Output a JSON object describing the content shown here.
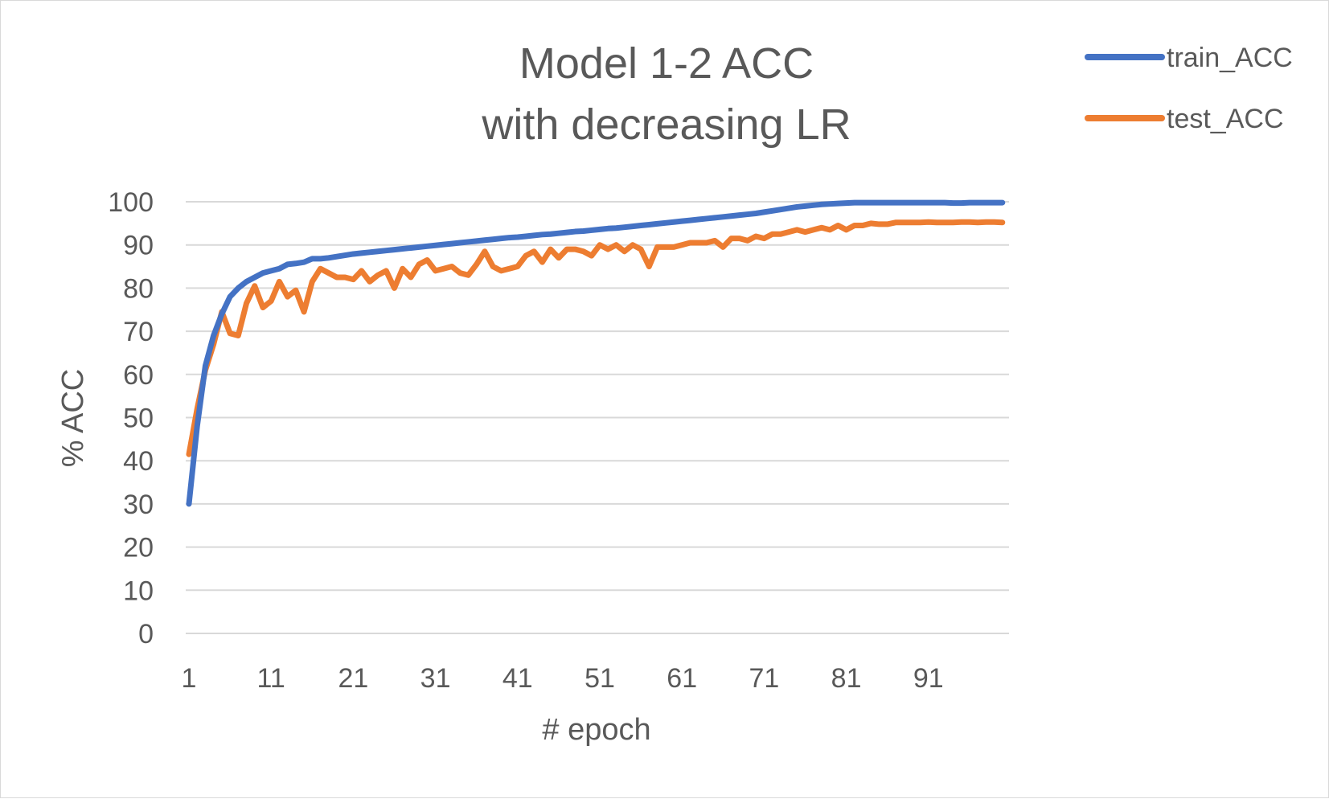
{
  "chart_data": {
    "type": "line",
    "title": "Model 1-2 ACC",
    "subtitle": "with decreasing LR",
    "xlabel": "# epoch",
    "ylabel": "% ACC",
    "ylim": [
      0,
      100
    ],
    "y_ticks": [
      "0",
      "10",
      "20",
      "30",
      "40",
      "50",
      "60",
      "70",
      "80",
      "90",
      "100"
    ],
    "x_ticks": [
      "1",
      "11",
      "21",
      "31",
      "41",
      "51",
      "61",
      "71",
      "81",
      "91"
    ],
    "x": [
      1,
      2,
      3,
      4,
      5,
      6,
      7,
      8,
      9,
      10,
      11,
      12,
      13,
      14,
      15,
      16,
      17,
      18,
      19,
      20,
      21,
      22,
      23,
      24,
      25,
      26,
      27,
      28,
      29,
      30,
      31,
      32,
      33,
      34,
      35,
      36,
      37,
      38,
      39,
      40,
      41,
      42,
      43,
      44,
      45,
      46,
      47,
      48,
      49,
      50,
      51,
      52,
      53,
      54,
      55,
      56,
      57,
      58,
      59,
      60,
      61,
      62,
      63,
      64,
      65,
      66,
      67,
      68,
      69,
      70,
      71,
      72,
      73,
      74,
      75,
      76,
      77,
      78,
      79,
      80,
      81,
      82,
      83,
      84,
      85,
      86,
      87,
      88,
      89,
      90,
      91,
      92,
      93,
      94,
      95,
      96,
      97,
      98,
      99,
      100
    ],
    "grid": true,
    "legend_position": "top-right",
    "series": [
      {
        "name": "train_ACC",
        "color": "#4472c4",
        "values": [
          30,
          48,
          62,
          69,
          74,
          78,
          80,
          81.5,
          82.5,
          83.5,
          84,
          84.5,
          85.5,
          85.7,
          86,
          86.8,
          86.8,
          87,
          87.3,
          87.6,
          87.9,
          88.1,
          88.3,
          88.5,
          88.7,
          88.9,
          89.1,
          89.3,
          89.5,
          89.7,
          89.9,
          90.1,
          90.3,
          90.5,
          90.7,
          90.9,
          91.1,
          91.3,
          91.5,
          91.7,
          91.8,
          92,
          92.2,
          92.4,
          92.5,
          92.7,
          92.9,
          93.1,
          93.2,
          93.4,
          93.6,
          93.8,
          93.9,
          94.1,
          94.3,
          94.5,
          94.7,
          94.9,
          95.1,
          95.3,
          95.5,
          95.7,
          95.9,
          96.1,
          96.3,
          96.5,
          96.7,
          96.9,
          97.1,
          97.3,
          97.6,
          97.9,
          98.2,
          98.5,
          98.8,
          99,
          99.2,
          99.4,
          99.5,
          99.6,
          99.7,
          99.8,
          99.8,
          99.8,
          99.8,
          99.8,
          99.8,
          99.8,
          99.8,
          99.8,
          99.8,
          99.8,
          99.8,
          99.7,
          99.7,
          99.8,
          99.8,
          99.8,
          99.8,
          99.8
        ]
      },
      {
        "name": "test_ACC",
        "color": "#ed7d31",
        "values": [
          41.5,
          52,
          61,
          67,
          74.5,
          69.5,
          69,
          76.5,
          80.5,
          75.5,
          77,
          81.5,
          78,
          79.5,
          74.5,
          81.5,
          84.5,
          83.5,
          82.5,
          82.5,
          82,
          84,
          81.5,
          83,
          84,
          80,
          84.5,
          82.5,
          85.5,
          86.5,
          84,
          84.5,
          85,
          83.5,
          83,
          85.5,
          88.5,
          85,
          84,
          84.5,
          85,
          87.5,
          88.5,
          86,
          89,
          87,
          89,
          89,
          88.5,
          87.5,
          90,
          89,
          90,
          88.5,
          90,
          89,
          85,
          89.5,
          89.5,
          89.5,
          90,
          90.5,
          90.5,
          90.5,
          91,
          89.5,
          91.5,
          91.5,
          91,
          92,
          91.5,
          92.5,
          92.5,
          93,
          93.5,
          93,
          93.5,
          94,
          93.5,
          94.5,
          93.5,
          94.5,
          94.5,
          95,
          94.8,
          94.8,
          95.2,
          95.2,
          95.2,
          95.2,
          95.3,
          95.2,
          95.2,
          95.2,
          95.3,
          95.3,
          95.2,
          95.3,
          95.3,
          95.2
        ]
      }
    ]
  }
}
